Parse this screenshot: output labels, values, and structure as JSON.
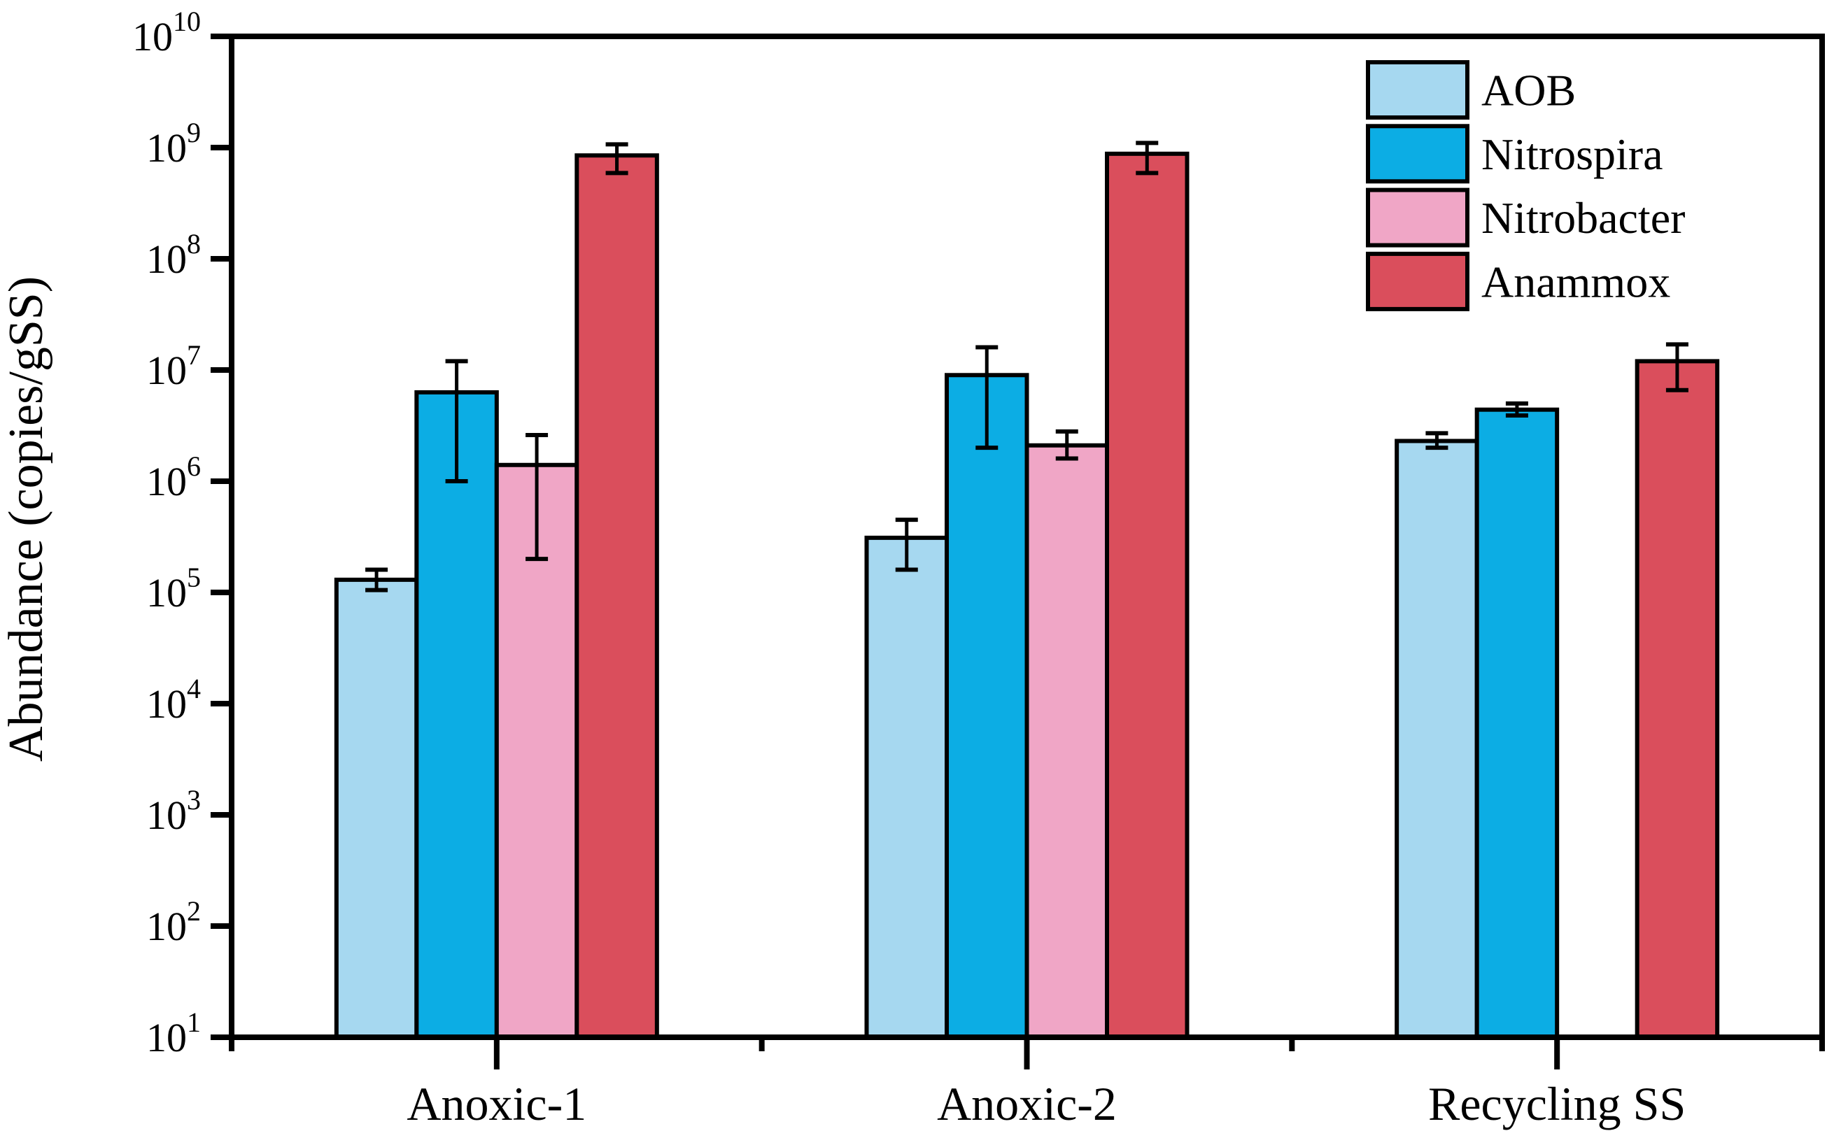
{
  "figure": {
    "background": "#FFFFFF"
  },
  "chart_data": {
    "type": "bar",
    "title": "",
    "ylabel": "Abundance (copies/gSS)",
    "xlabel": "",
    "yscale": "log",
    "ylim_exp": [
      1,
      10
    ],
    "y_tick_exponents": [
      1,
      2,
      3,
      4,
      5,
      6,
      7,
      8,
      9,
      10
    ],
    "categories": [
      "Anoxic-1",
      "Anoxic-2",
      "Recycling SS"
    ],
    "grid": false,
    "legend_position": "upper-right-inside",
    "axis_color": "#000000",
    "error_bars": true,
    "series": [
      {
        "name": "AOB",
        "color": "#A6D8F0",
        "values": [
          {
            "v": 130000,
            "lo": 105000,
            "hi": 160000
          },
          {
            "v": 310000,
            "lo": 160000,
            "hi": 450000
          },
          {
            "v": 2300000,
            "lo": 2000000,
            "hi": 2700000
          }
        ]
      },
      {
        "name": "Nitrospira",
        "color": "#0CADE4",
        "values": [
          {
            "v": 6300000,
            "lo": 1000000,
            "hi": 12000000
          },
          {
            "v": 9000000,
            "lo": 2000000,
            "hi": 16000000
          },
          {
            "v": 4400000,
            "lo": 3900000,
            "hi": 5000000
          }
        ]
      },
      {
        "name": "Nitrobacter",
        "color": "#F0A6C6",
        "values": [
          {
            "v": 1400000,
            "lo": 200000,
            "hi": 2600000
          },
          {
            "v": 2100000,
            "lo": 1600000,
            "hi": 2800000
          },
          null
        ]
      },
      {
        "name": "Anammox",
        "color": "#DA4E5C",
        "values": [
          {
            "v": 850000000,
            "lo": 590000000,
            "hi": 1070000000
          },
          {
            "v": 880000000,
            "lo": 590000000,
            "hi": 1100000000
          },
          {
            "v": 12000000,
            "lo": 6600000,
            "hi": 17000000
          }
        ]
      }
    ]
  }
}
